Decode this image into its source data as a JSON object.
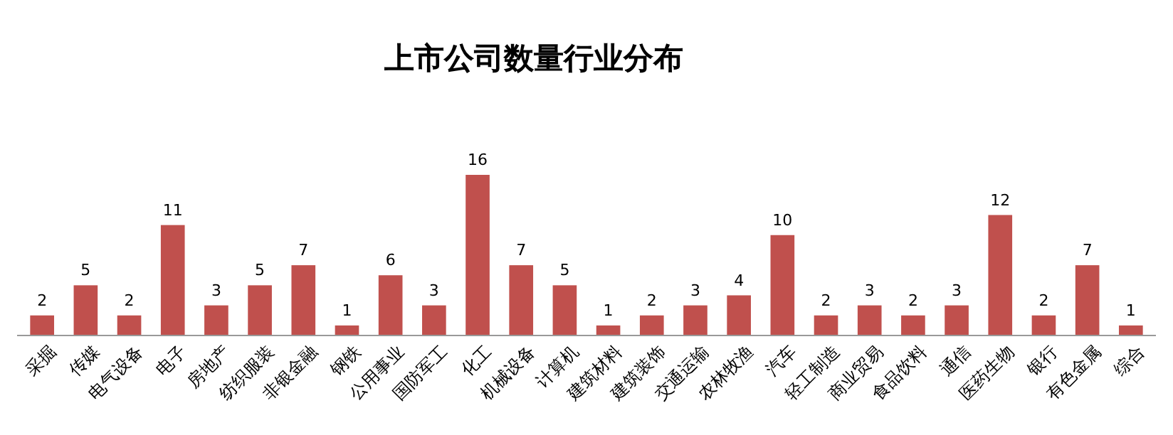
{
  "chart_data": {
    "type": "bar",
    "title": "上市公司数量行业分布",
    "categories": [
      "采掘",
      "传媒",
      "电气设备",
      "电子",
      "房地产",
      "纺织服装",
      "非银金融",
      "钢铁",
      "公用事业",
      "国防军工",
      "化工",
      "机械设备",
      "计算机",
      "建筑材料",
      "建筑装饰",
      "交通运输",
      "农林牧渔",
      "汽车",
      "轻工制造",
      "商业贸易",
      "食品饮料",
      "通信",
      "医药生物",
      "银行",
      "有色金属",
      "综合"
    ],
    "values": [
      2,
      5,
      2,
      11,
      3,
      5,
      7,
      1,
      6,
      3,
      16,
      7,
      5,
      1,
      2,
      3,
      4,
      10,
      2,
      3,
      2,
      3,
      12,
      2,
      7,
      1
    ],
    "color": "#c0504d",
    "data_labels": true
  }
}
